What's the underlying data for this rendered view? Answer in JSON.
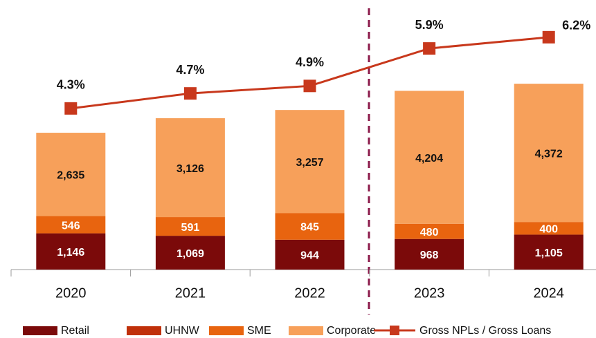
{
  "chart_data": {
    "type": "bar",
    "categories": [
      "2020",
      "2021",
      "2022",
      "2023",
      "2024"
    ],
    "series": [
      {
        "name": "Retail",
        "color": "#7b0a0a",
        "values": [
          1146,
          1069,
          944,
          968,
          1105
        ],
        "value_labels": [
          "1,146",
          "1,069",
          "944",
          "968",
          "1,105"
        ]
      },
      {
        "name": "UHNW",
        "color": "#c0300a",
        "values": [
          0,
          0,
          0,
          0,
          0
        ]
      },
      {
        "name": "SME",
        "color": "#e8640f",
        "values": [
          546,
          591,
          845,
          480,
          400
        ],
        "value_labels": [
          "546",
          "591",
          "845",
          "480",
          "400"
        ]
      },
      {
        "name": "Corporate",
        "color": "#f7a05a",
        "values": [
          2635,
          3126,
          3257,
          4204,
          4372
        ],
        "value_labels": [
          "2,635",
          "3,126",
          "3,257",
          "4,204",
          "4,372"
        ]
      },
      {
        "name": "Gross NPLs / Gross Loans",
        "type": "line",
        "axis": "y2",
        "color": "#c8381c",
        "values": [
          4.3,
          4.7,
          4.9,
          5.9,
          6.2
        ],
        "value_labels": [
          "4.3%",
          "4.7%",
          "4.9%",
          "5.9%",
          "6.2%"
        ]
      }
    ],
    "ylim": [
      0,
      8000
    ],
    "y2lim": [
      0,
      6.75
    ],
    "stacked": true
  }
}
